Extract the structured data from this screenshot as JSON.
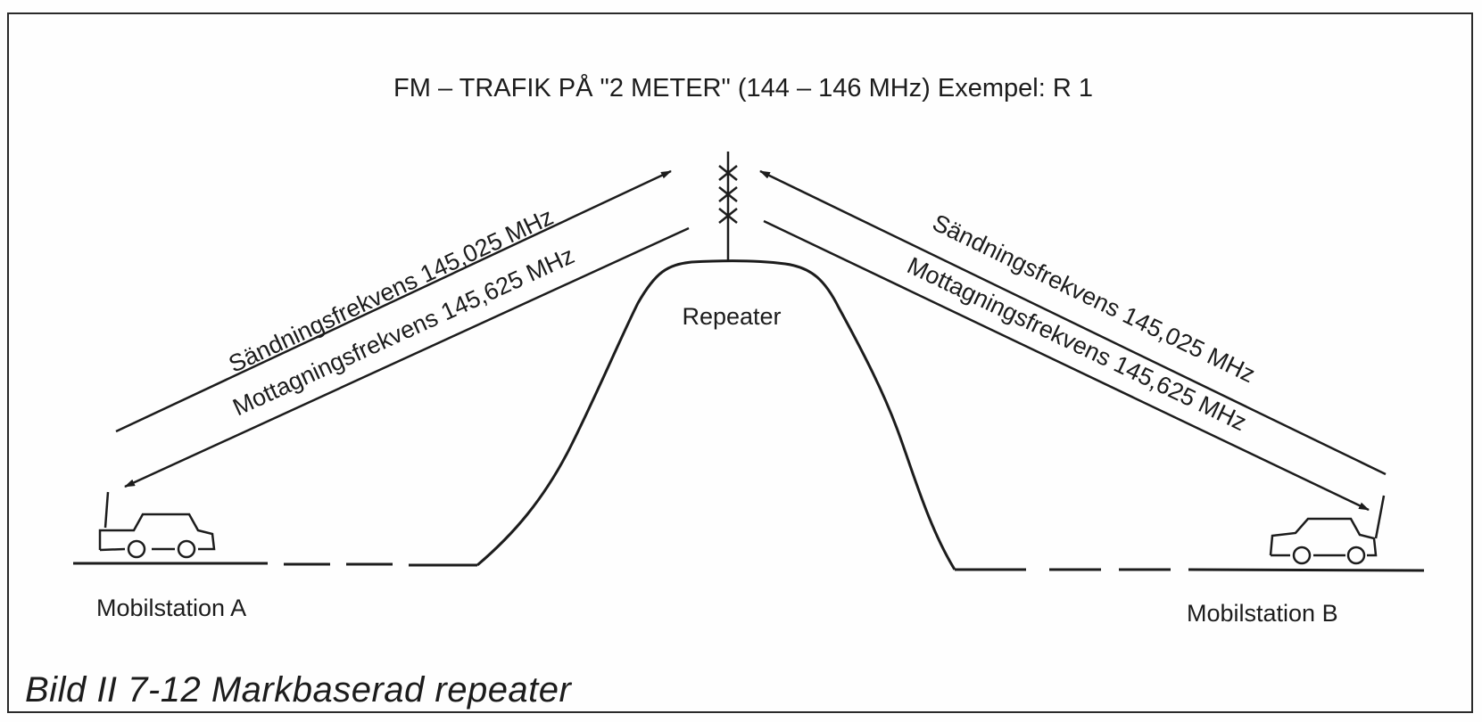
{
  "title": "FM – TRAFIK PÅ \"2 METER\" (144 – 146 MHz)  Exempel: R 1",
  "repeater_label": "Repeater",
  "left": {
    "send_label": "Sändningsfrekvens  145,025  MHz",
    "receive_label": "Mottagningsfrekvens  145,625  MHz",
    "station_label": "Mobilstation  A"
  },
  "right": {
    "send_label": "Sändningsfrekvens  145,025  MHz",
    "receive_label": "Mottagningsfrekvens  145,625  MHz",
    "station_label": "Mobilstation  B"
  },
  "caption": "Bild II 7-12  Markbaserad repeater",
  "colors": {
    "ink": "#1c1c1c",
    "paper": "#fefefe"
  }
}
